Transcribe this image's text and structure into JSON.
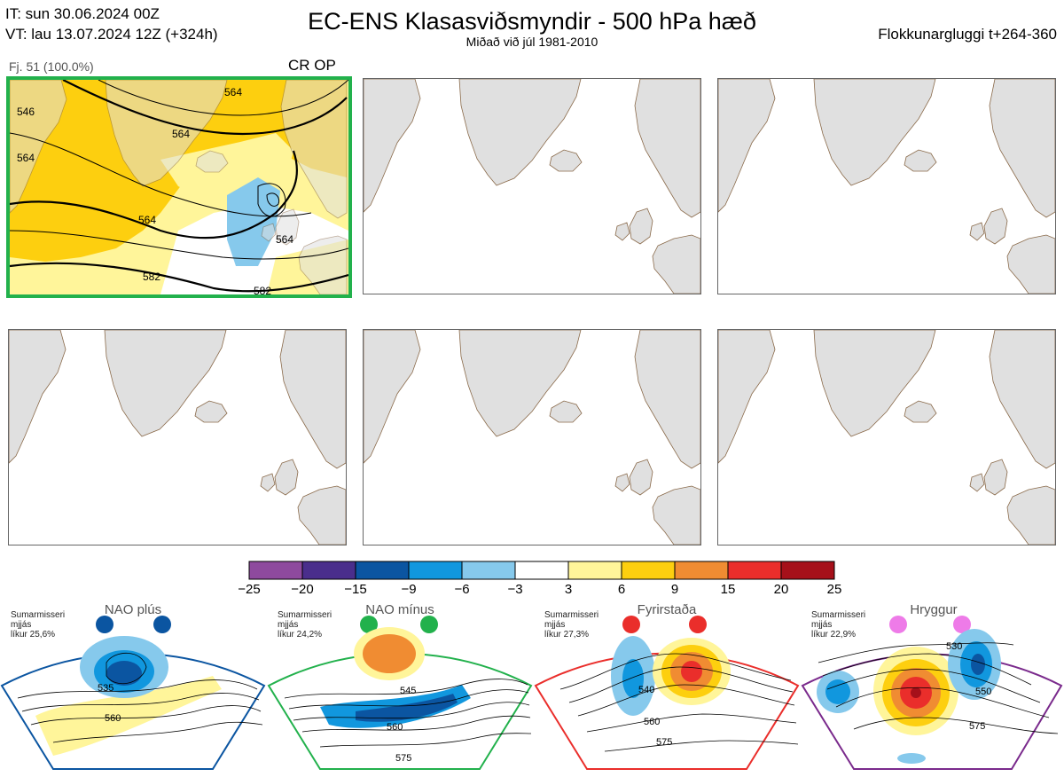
{
  "header": {
    "it_line": "IT: sun 30.06.2024 00Z",
    "vt_line": "VT: lau 13.07.2024 12Z  (+324h)",
    "title": "EC-ENS Klasasviðsmyndir - 500 hPa hæð",
    "subtitle": "Miðað við júl 1981-2010",
    "window": "Flokkunargluggi t+264-360"
  },
  "panels": [
    {
      "label": "Fj. 51 (100.0%)",
      "code": "CR OP",
      "active": true
    },
    {
      "label": "",
      "code": "",
      "active": false
    },
    {
      "label": "",
      "code": "",
      "active": false
    },
    {
      "label": "",
      "code": "",
      "active": false
    },
    {
      "label": "",
      "code": "",
      "active": false
    },
    {
      "label": "",
      "code": "",
      "active": false
    }
  ],
  "contour_labels": [
    "546",
    "564",
    "564",
    "564",
    "546",
    "564",
    "582",
    "582",
    "564",
    "564"
  ],
  "colorbar": {
    "ticks": [
      "−25",
      "−20",
      "−15",
      "−9",
      "−6",
      "−3",
      "3",
      "6",
      "9",
      "15",
      "20",
      "25"
    ],
    "colors": [
      "#8e4a9e",
      "#4a2e8c",
      "#0b55a1",
      "#1197de",
      "#86c9ec",
      "#ffffff",
      "#fff59a",
      "#fdcf0f",
      "#f08c32",
      "#ea2e2b",
      "#a6101a"
    ]
  },
  "regimes": [
    {
      "name": "NAO plús",
      "season": "Sumarmisseri",
      "desc": "mjjás",
      "prob": "líkur 25,6%",
      "color": "#0b55a1",
      "contours": [
        "535",
        "560"
      ]
    },
    {
      "name": "NAO mínus",
      "season": "Sumarmisseri",
      "desc": "mjjás",
      "prob": "líkur 24,2%",
      "color": "#22b14c",
      "contours": [
        "545",
        "560",
        "575"
      ]
    },
    {
      "name": "Fyrirstaða",
      "season": "Sumarmisseri",
      "desc": "mjjás",
      "prob": "líkur 27,3%",
      "color": "#ea2e2b",
      "contours": [
        "540",
        "560",
        "575"
      ]
    },
    {
      "name": "Hryggur",
      "season": "Sumarmisseri",
      "desc": "mjjás",
      "prob": "líkur 22,9%",
      "color": "#7a2a8c",
      "dot_color": "#ee7be8",
      "contours": [
        "530",
        "550",
        "575"
      ]
    }
  ]
}
